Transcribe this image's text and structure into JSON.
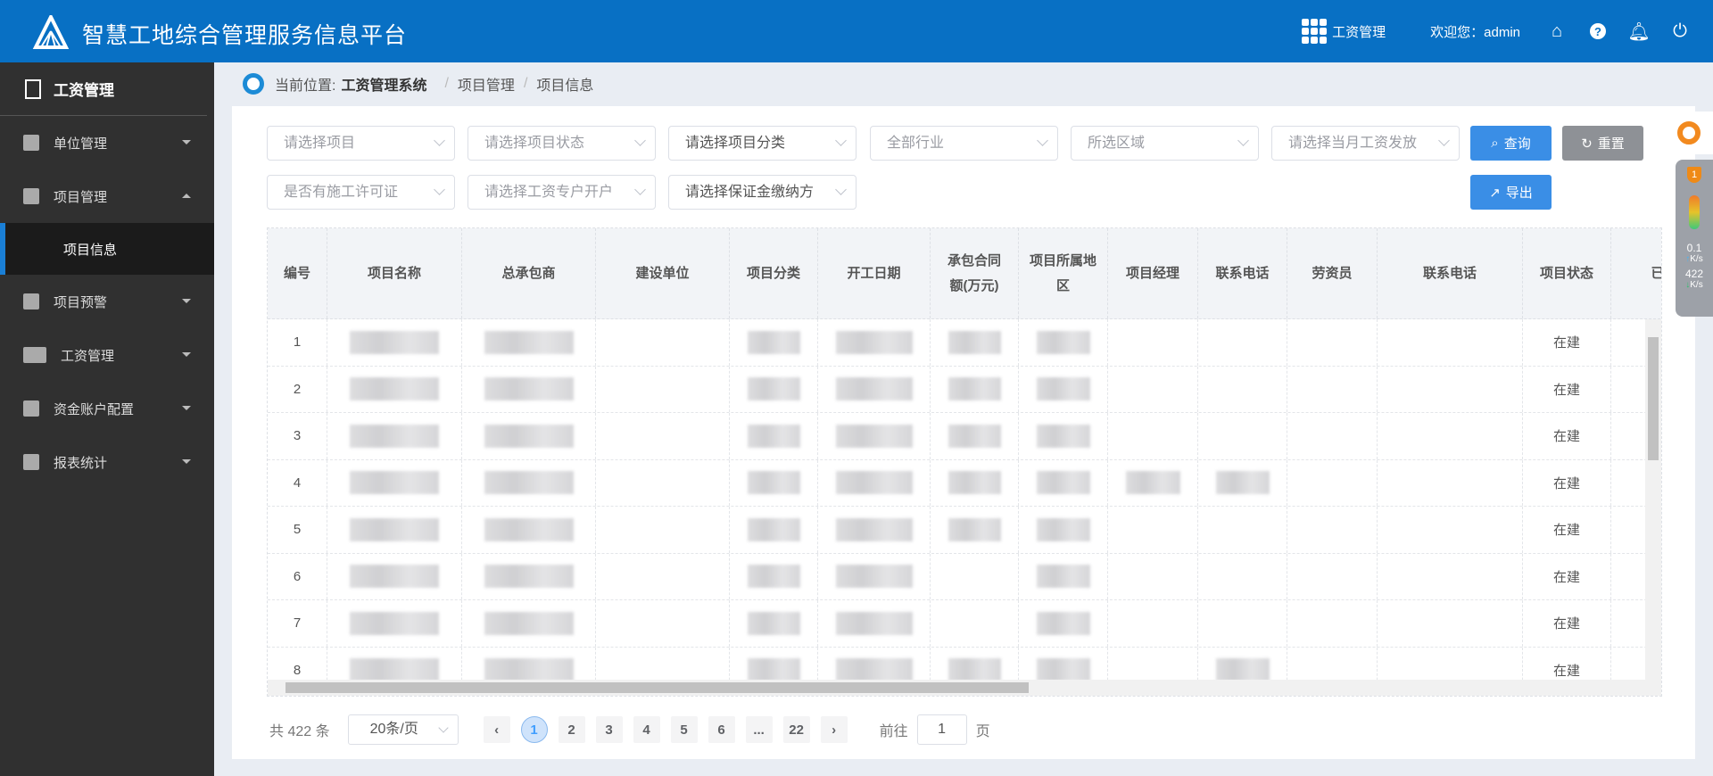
{
  "header": {
    "title": "智慧工地综合管理服务信息平台",
    "module": "工资管理",
    "welcome": "欢迎您：admin",
    "icons": [
      "home-icon",
      "help-icon",
      "bell-icon",
      "power-icon"
    ]
  },
  "sidebar": {
    "title": "工资管理",
    "items": [
      {
        "label": "单位管理",
        "icon": "building-icon",
        "expanded": false
      },
      {
        "label": "项目管理",
        "icon": "box-icon",
        "expanded": true,
        "children": [
          {
            "label": "项目信息",
            "active": true
          }
        ]
      },
      {
        "label": "项目预警",
        "icon": "box-icon",
        "expanded": false
      },
      {
        "label": "工资管理",
        "icon": "card-icon",
        "expanded": false
      },
      {
        "label": "资金账户配置",
        "icon": "yuan-icon",
        "expanded": false
      },
      {
        "label": "报表统计",
        "icon": "clipboard-icon",
        "expanded": false
      }
    ]
  },
  "breadcrumb": {
    "prefix": "当前位置:",
    "items": [
      "工资管理系统",
      "项目管理",
      "项目信息"
    ]
  },
  "filters": [
    {
      "placeholder": "请选择项目"
    },
    {
      "placeholder": "请选择项目状态"
    },
    {
      "value": "请选择项目分类"
    },
    {
      "placeholder": "全部行业"
    },
    {
      "placeholder": "所选区域"
    },
    {
      "placeholder": "请选择当月工资发放"
    },
    {
      "placeholder": "是否有施工许可证"
    },
    {
      "placeholder": "请选择工资专户开户"
    },
    {
      "value": "请选择保证金缴纳方"
    }
  ],
  "buttons": {
    "query": "查询",
    "reset": "重置",
    "export": "导出"
  },
  "table": {
    "columns": [
      "编号",
      "项目名称",
      "总承包商",
      "建设单位",
      "项目分类",
      "开工日期",
      "承包合同额(万元)",
      "项目所属地区",
      "项目经理",
      "联系电话",
      "劳资员",
      "联系电话",
      "项目状态",
      "已发"
    ],
    "rows": [
      {
        "no": "1",
        "status": "在建",
        "masked": [
          1,
          2,
          4,
          5,
          6,
          7
        ]
      },
      {
        "no": "2",
        "status": "在建",
        "masked": [
          1,
          2,
          4,
          5,
          6,
          7
        ]
      },
      {
        "no": "3",
        "status": "在建",
        "masked": [
          1,
          2,
          4,
          5,
          6,
          7
        ]
      },
      {
        "no": "4",
        "status": "在建",
        "masked": [
          1,
          2,
          4,
          5,
          6,
          7,
          8,
          9
        ]
      },
      {
        "no": "5",
        "status": "在建",
        "masked": [
          1,
          2,
          4,
          5,
          6,
          7
        ]
      },
      {
        "no": "6",
        "status": "在建",
        "masked": [
          1,
          2,
          4,
          5,
          7
        ]
      },
      {
        "no": "7",
        "status": "在建",
        "masked": [
          1,
          2,
          4,
          5,
          7
        ]
      },
      {
        "no": "8",
        "status": "在建",
        "masked": [
          1,
          2,
          4,
          5,
          6,
          7,
          9
        ]
      }
    ]
  },
  "pagination": {
    "total": "共 422 条",
    "page_size": "20条/页",
    "pages": [
      "1",
      "2",
      "3",
      "4",
      "5",
      "6",
      "...",
      "22"
    ],
    "current": "1",
    "goto_label": "前往",
    "goto_value": "1",
    "page_suffix": "页"
  },
  "widget": {
    "badge": "1",
    "up": "0.1",
    "up_unit": "K/s",
    "down": "422",
    "down_unit": "K/s"
  }
}
